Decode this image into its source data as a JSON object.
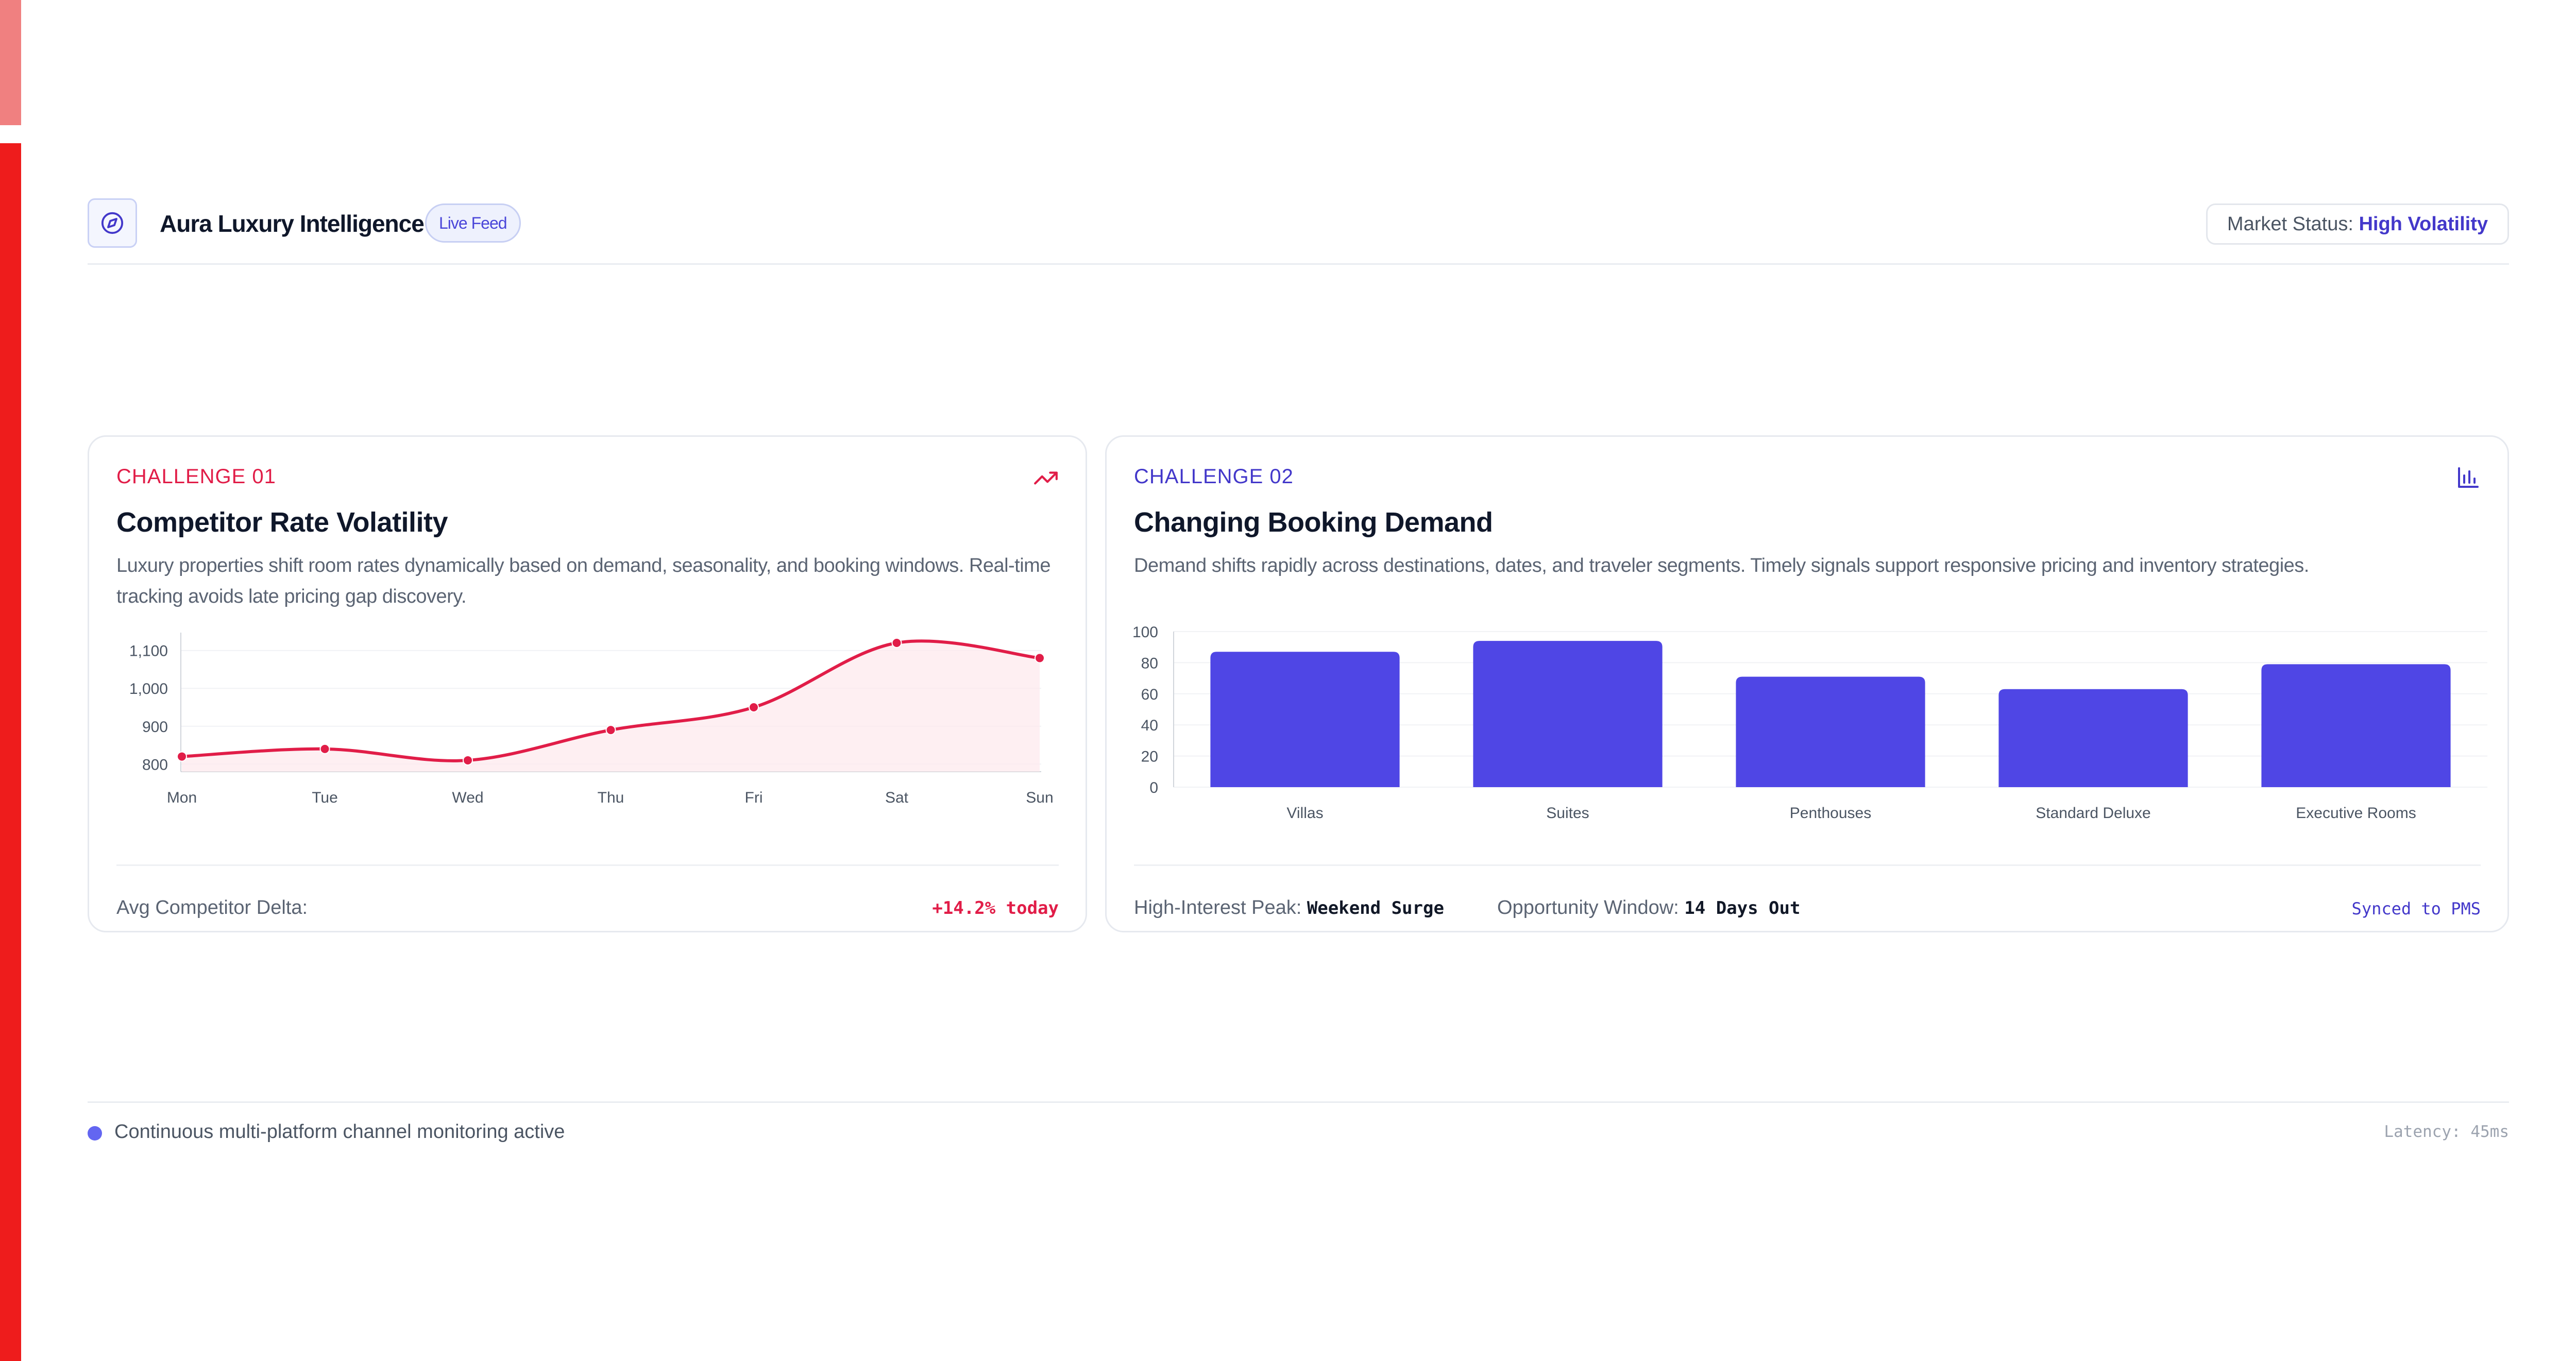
{
  "header": {
    "brand_icon": "compass-icon",
    "brand_name": "Aura Luxury Intelligence",
    "badge": "Live Feed",
    "market_status_label": "Market Status:",
    "market_status_value": "High Volatility"
  },
  "cards": [
    {
      "kicker": "CHALLENGE 01",
      "icon": "trending-up-icon",
      "title": "Competitor Rate Volatility",
      "description": "Luxury properties shift room rates dynamically based on demand, seasonality, and booking windows. Real-time tracking avoids late pricing gap discovery.",
      "footer_label": "Avg Competitor Delta:",
      "footer_value": "+14.2% today"
    },
    {
      "kicker": "CHALLENGE 02",
      "icon": "bar-chart-icon",
      "title": "Changing Booking Demand",
      "description": "Demand shifts rapidly across destinations, dates, and traveler segments. Timely signals support responsive pricing and inventory strategies.",
      "peak_label": "High-Interest Peak:",
      "peak_value": "Weekend Surge",
      "window_label": "Opportunity Window:",
      "window_value": "14 Days Out",
      "sync_text": "Synced to PMS"
    }
  ],
  "footer": {
    "status_text": "Continuous multi-platform channel monitoring active",
    "latency": "Latency: 45ms"
  },
  "colors": {
    "line": "#e11d48",
    "bar": "#4f46e5"
  },
  "chart_data": [
    {
      "type": "area",
      "categories": [
        "Mon",
        "Tue",
        "Wed",
        "Thu",
        "Fri",
        "Sat",
        "Sun"
      ],
      "values": [
        820,
        840,
        810,
        890,
        950,
        1120,
        1080
      ],
      "yticks": [
        800,
        900,
        1000,
        1100
      ],
      "ytick_labels": [
        "800",
        "900",
        "1,000",
        "1,100"
      ],
      "ylim": [
        780,
        1120
      ],
      "grid": true,
      "title": "",
      "xlabel": "",
      "ylabel": ""
    },
    {
      "type": "bar",
      "categories": [
        "Villas",
        "Suites",
        "Penthouses",
        "Standard Deluxe",
        "Executive Rooms"
      ],
      "values": [
        87,
        94,
        71,
        63,
        79
      ],
      "yticks": [
        0,
        20,
        40,
        60,
        80,
        100
      ],
      "ylim": [
        0,
        100
      ],
      "grid": true,
      "title": "",
      "xlabel": "",
      "ylabel": ""
    }
  ]
}
